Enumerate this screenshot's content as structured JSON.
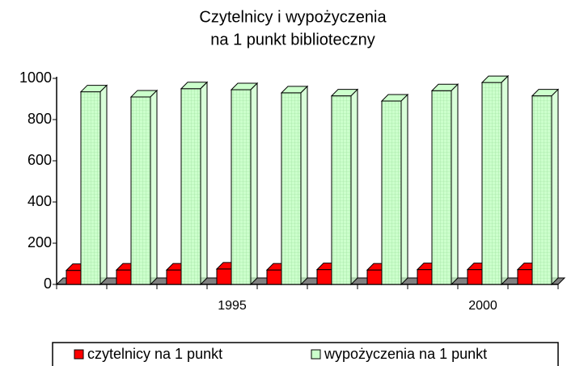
{
  "chart_data": {
    "type": "bar",
    "title": [
      "Czytelnicy i wypożyczenia",
      "na 1 punkt biblioteczny"
    ],
    "categories": [
      null,
      null,
      null,
      "1995",
      null,
      null,
      null,
      null,
      "2000",
      null
    ],
    "series": [
      {
        "name": "czytelnicy na 1 punkt",
        "color": "#ff0000",
        "values": [
          68,
          70,
          70,
          75,
          70,
          72,
          70,
          72,
          72,
          72
        ]
      },
      {
        "name": "wypożyczenia na 1 punkt",
        "color": "#ccffcc",
        "values": [
          935,
          910,
          950,
          945,
          930,
          915,
          890,
          940,
          980,
          915
        ]
      }
    ],
    "ylim": [
      0,
      1000
    ],
    "yticks": [
      0,
      200,
      400,
      600,
      800,
      1000
    ],
    "legend": "bottom"
  }
}
